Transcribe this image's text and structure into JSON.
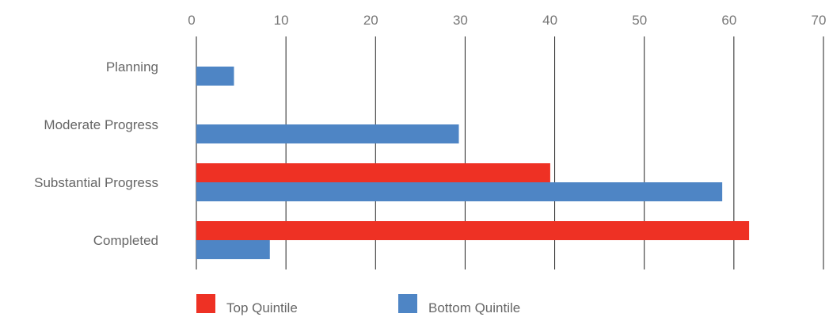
{
  "chart_data": {
    "type": "bar",
    "orientation": "horizontal",
    "title": "",
    "xlabel": "",
    "ylabel": "",
    "xlim": [
      0,
      70
    ],
    "x_ticks": [
      0,
      10,
      20,
      30,
      40,
      50,
      60,
      70
    ],
    "x_axis_position": "top",
    "grid": "vertical",
    "legend_position": "bottom-left",
    "categories": [
      "Planning",
      "Moderate Progress",
      "Substantial Progress",
      "Completed"
    ],
    "series": [
      {
        "name": "Top Quintile",
        "color": "#ee3124",
        "values": [
          0,
          0,
          39.5,
          61.7
        ]
      },
      {
        "name": "Bottom Quintile",
        "color": "#4e85c5",
        "values": [
          4.2,
          29.3,
          58.7,
          8.2
        ]
      }
    ]
  }
}
